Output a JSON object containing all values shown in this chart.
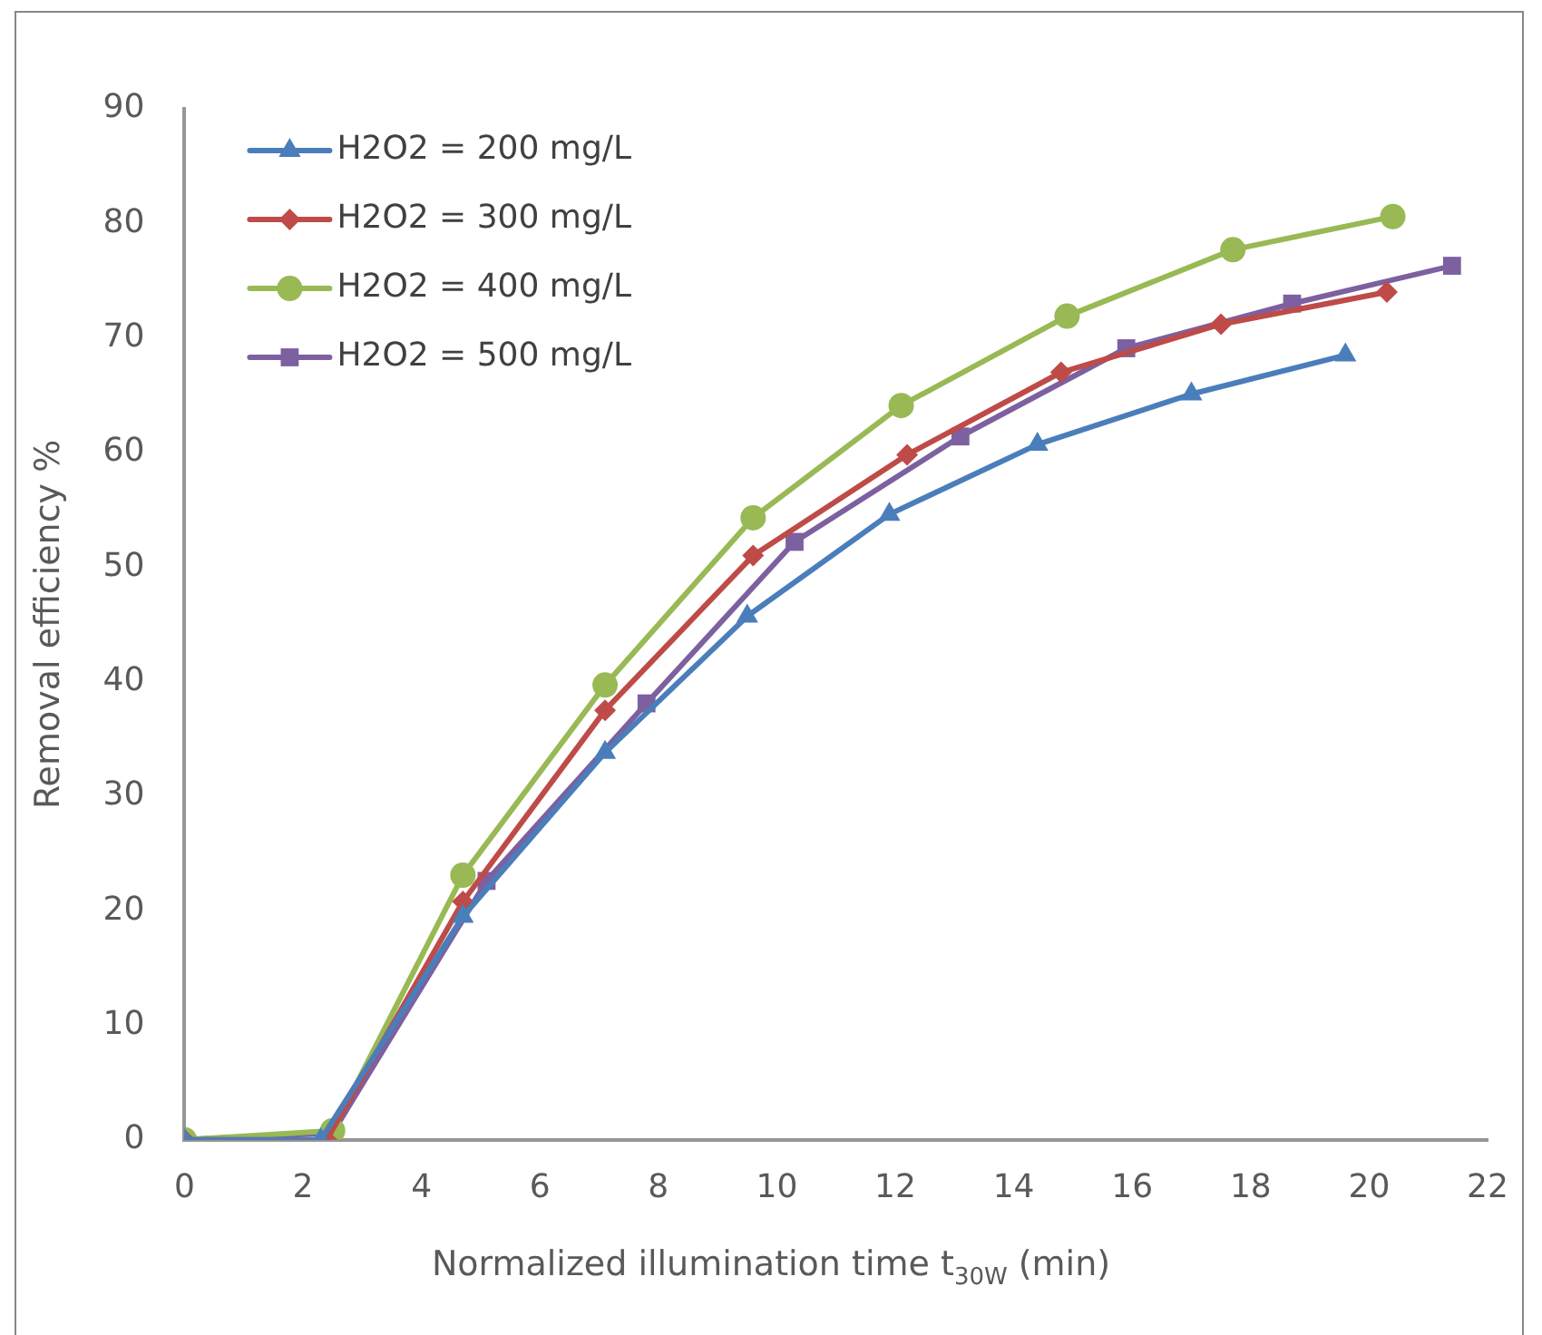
{
  "chart_data": {
    "type": "line",
    "xlabel": "Normalized illumination time  t$_{30W}$ (min)",
    "ylabel": "Removal efficiency %",
    "xlim": [
      0,
      22
    ],
    "xticks": [
      0,
      2,
      4,
      6,
      8,
      10,
      12,
      14,
      16,
      18,
      20,
      22
    ],
    "ylim": [
      0,
      90
    ],
    "yticks": [
      0,
      10,
      20,
      30,
      40,
      50,
      60,
      70,
      80,
      90
    ],
    "grid": false,
    "legend": "top left",
    "line_style": "solid",
    "series": [
      {
        "name": "H2O2 = 200 mg/L",
        "color": "#4a7ebb",
        "marker": "triangle",
        "x": [
          0,
          2.3,
          4.7,
          7.1,
          9.5,
          11.9,
          14.4,
          17.0,
          19.6
        ],
        "values": [
          0,
          0,
          19.5,
          33.8,
          45.7,
          54.6,
          60.7,
          65.1,
          68.5
        ]
      },
      {
        "name": "H2O2 = 300 mg/L",
        "color": "#be4b48",
        "marker": "diamond",
        "x": [
          0,
          2.4,
          4.7,
          7.1,
          9.6,
          12.2,
          14.8,
          17.5,
          20.3
        ],
        "values": [
          0,
          0,
          20.8,
          37.5,
          51.0,
          59.8,
          67.0,
          71.2,
          74.0
        ]
      },
      {
        "name": "H2O2 = 400 mg/L",
        "color": "#98b954",
        "marker": "circle",
        "x": [
          0,
          2.5,
          4.7,
          7.1,
          9.6,
          12.1,
          14.9,
          17.7,
          20.4
        ],
        "values": [
          0,
          0.8,
          23.1,
          39.7,
          54.3,
          64.1,
          71.9,
          77.7,
          80.6
        ]
      },
      {
        "name": "H2O2 = 500 mg/L",
        "color": "#7d60a0",
        "marker": "square",
        "x": [
          0,
          2.5,
          5.1,
          7.8,
          10.3,
          13.1,
          15.9,
          18.7,
          21.4
        ],
        "values": [
          0,
          0.6,
          22.6,
          38.1,
          52.2,
          61.4,
          69.1,
          73.0,
          76.3
        ]
      }
    ]
  }
}
